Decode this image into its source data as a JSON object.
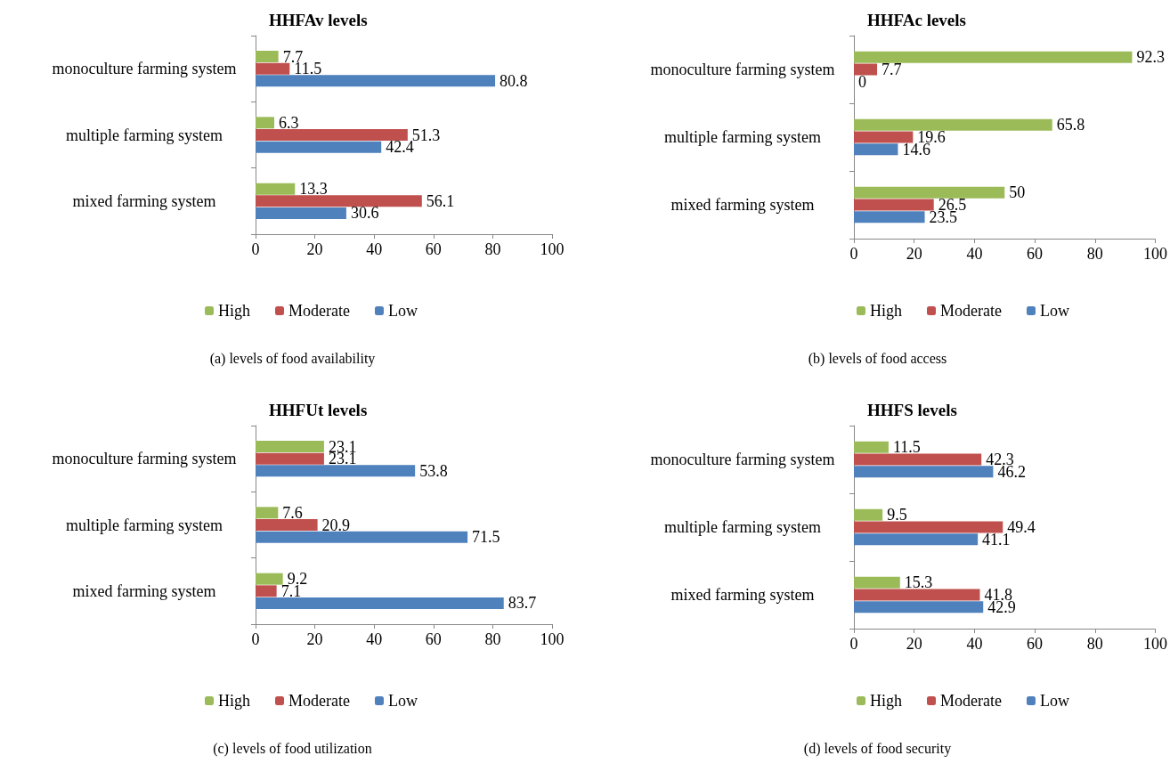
{
  "chart_data": [
    {
      "type": "bar",
      "orientation": "horizontal",
      "title": "HHFAv levels",
      "categories": [
        "monoculture farming system",
        "multiple farming system",
        "mixed farming system"
      ],
      "series": [
        {
          "name": "High",
          "color": "#9bbb59",
          "values": [
            7.7,
            6.3,
            13.3
          ]
        },
        {
          "name": "Moderate",
          "color": "#c0504d",
          "values": [
            11.5,
            51.3,
            56.1
          ]
        },
        {
          "name": "Low",
          "color": "#4f81bd",
          "values": [
            80.8,
            42.4,
            30.6
          ]
        }
      ],
      "xlim": [
        0,
        100
      ],
      "xticks": [
        0,
        20,
        40,
        60,
        80,
        100
      ],
      "data_labels": true,
      "legend": "bottom",
      "grid": false,
      "annotations": [
        "(a) levels of food availability"
      ]
    },
    {
      "type": "bar",
      "orientation": "horizontal",
      "title": "HHFAc levels",
      "categories": [
        "monoculture farming system",
        "multiple farming system",
        "mixed farming system"
      ],
      "series": [
        {
          "name": "High",
          "color": "#9bbb59",
          "values": [
            92.3,
            65.8,
            50
          ]
        },
        {
          "name": "Moderate",
          "color": "#c0504d",
          "values": [
            7.7,
            19.6,
            26.5
          ]
        },
        {
          "name": "Low",
          "color": "#4f81bd",
          "values": [
            0,
            14.6,
            23.5
          ]
        }
      ],
      "xlim": [
        0,
        100
      ],
      "xticks": [
        0,
        20,
        40,
        60,
        80,
        100
      ],
      "data_labels": true,
      "legend": "bottom",
      "grid": false,
      "annotations": [
        "(b) levels of food access"
      ]
    },
    {
      "type": "bar",
      "orientation": "horizontal",
      "title": "HHFUt levels",
      "categories": [
        "monoculture farming system",
        "multiple farming system",
        "mixed farming system"
      ],
      "series": [
        {
          "name": "High",
          "color": "#9bbb59",
          "values": [
            23.1,
            7.6,
            9.2
          ]
        },
        {
          "name": "Moderate",
          "color": "#c0504d",
          "values": [
            23.1,
            20.9,
            7.1
          ]
        },
        {
          "name": "Low",
          "color": "#4f81bd",
          "values": [
            53.8,
            71.5,
            83.7
          ]
        }
      ],
      "xlim": [
        0,
        100
      ],
      "xticks": [
        0,
        20,
        40,
        60,
        80,
        100
      ],
      "data_labels": true,
      "legend": "bottom",
      "grid": false,
      "annotations": [
        "(c) levels of food utilization"
      ]
    },
    {
      "type": "bar",
      "orientation": "horizontal",
      "title": "HHFS levels",
      "categories": [
        "monoculture farming system",
        "multiple farming system",
        "mixed farming system"
      ],
      "series": [
        {
          "name": "High",
          "color": "#9bbb59",
          "values": [
            11.5,
            9.5,
            15.3
          ]
        },
        {
          "name": "Moderate",
          "color": "#c0504d",
          "values": [
            42.3,
            49.4,
            41.8
          ]
        },
        {
          "name": "Low",
          "color": "#4f81bd",
          "values": [
            46.2,
            41.1,
            42.9
          ]
        }
      ],
      "xlim": [
        0,
        100
      ],
      "xticks": [
        0,
        20,
        40,
        60,
        80,
        100
      ],
      "data_labels": true,
      "legend": "bottom",
      "grid": false,
      "annotations": [
        "(d) levels of food security"
      ]
    }
  ]
}
